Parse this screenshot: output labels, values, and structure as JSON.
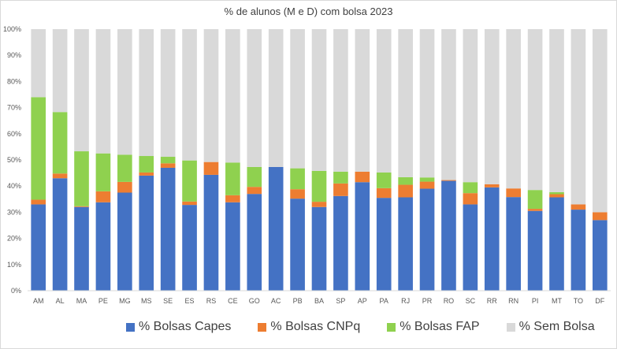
{
  "chart_data": {
    "type": "bar",
    "stacked": true,
    "title": "% de alunos (M e D) com bolsa 2023",
    "xlabel": "",
    "ylabel": "",
    "ylim": [
      0,
      100
    ],
    "y_ticks": [
      "0%",
      "10%",
      "20%",
      "30%",
      "40%",
      "50%",
      "60%",
      "70%",
      "80%",
      "90%",
      "100%"
    ],
    "grid": false,
    "legend_position": "bottom",
    "categories": [
      "AM",
      "AL",
      "MA",
      "PE",
      "MG",
      "MS",
      "SE",
      "ES",
      "RS",
      "CE",
      "GO",
      "AC",
      "PB",
      "BA",
      "SP",
      "AP",
      "PA",
      "RJ",
      "PR",
      "RO",
      "SC",
      "RR",
      "RN",
      "PI",
      "MT",
      "TO",
      "DF"
    ],
    "series": [
      {
        "name": "% Bolsas Capes",
        "color": "#4472c4",
        "values": [
          33,
          43,
          32,
          33.8,
          37.5,
          44,
          47,
          32.8,
          44.3,
          33.8,
          37,
          47.3,
          35.2,
          32,
          36.2,
          41.5,
          35.5,
          35.7,
          39,
          42,
          33,
          39.5,
          35.8,
          30.5,
          35.7,
          31,
          27
        ]
      },
      {
        "name": "% Bolsas CNPq",
        "color": "#ed7d31",
        "values": [
          1.8,
          1.8,
          0.3,
          4.2,
          4.1,
          1.2,
          1.7,
          1.3,
          4.9,
          2.7,
          2.7,
          0,
          3.6,
          2,
          4.8,
          4,
          3.7,
          4.8,
          2.7,
          0.3,
          4.3,
          1.2,
          3.3,
          0.8,
          1.2,
          2,
          3
        ]
      },
      {
        "name": "% Bolsas FAP",
        "color": "#8fd14f",
        "values": [
          39.2,
          23.5,
          21,
          14.5,
          10.4,
          6.3,
          2.5,
          15.7,
          0,
          12.5,
          7.6,
          0,
          8,
          11.8,
          4.5,
          0,
          6,
          2.9,
          1.6,
          0,
          4.2,
          0,
          0,
          7.2,
          0.8,
          0,
          0
        ]
      },
      {
        "name": "% Sem Bolsa",
        "color": "#d9d9d9",
        "values": [
          26,
          31.7,
          46.7,
          47.5,
          48,
          48.5,
          48.8,
          50.2,
          50.8,
          51,
          52.7,
          52.7,
          53.2,
          54.2,
          54.5,
          54.5,
          54.8,
          56.6,
          56.7,
          57.7,
          58.5,
          59.3,
          60.9,
          61.5,
          62.3,
          67,
          70
        ]
      }
    ]
  }
}
